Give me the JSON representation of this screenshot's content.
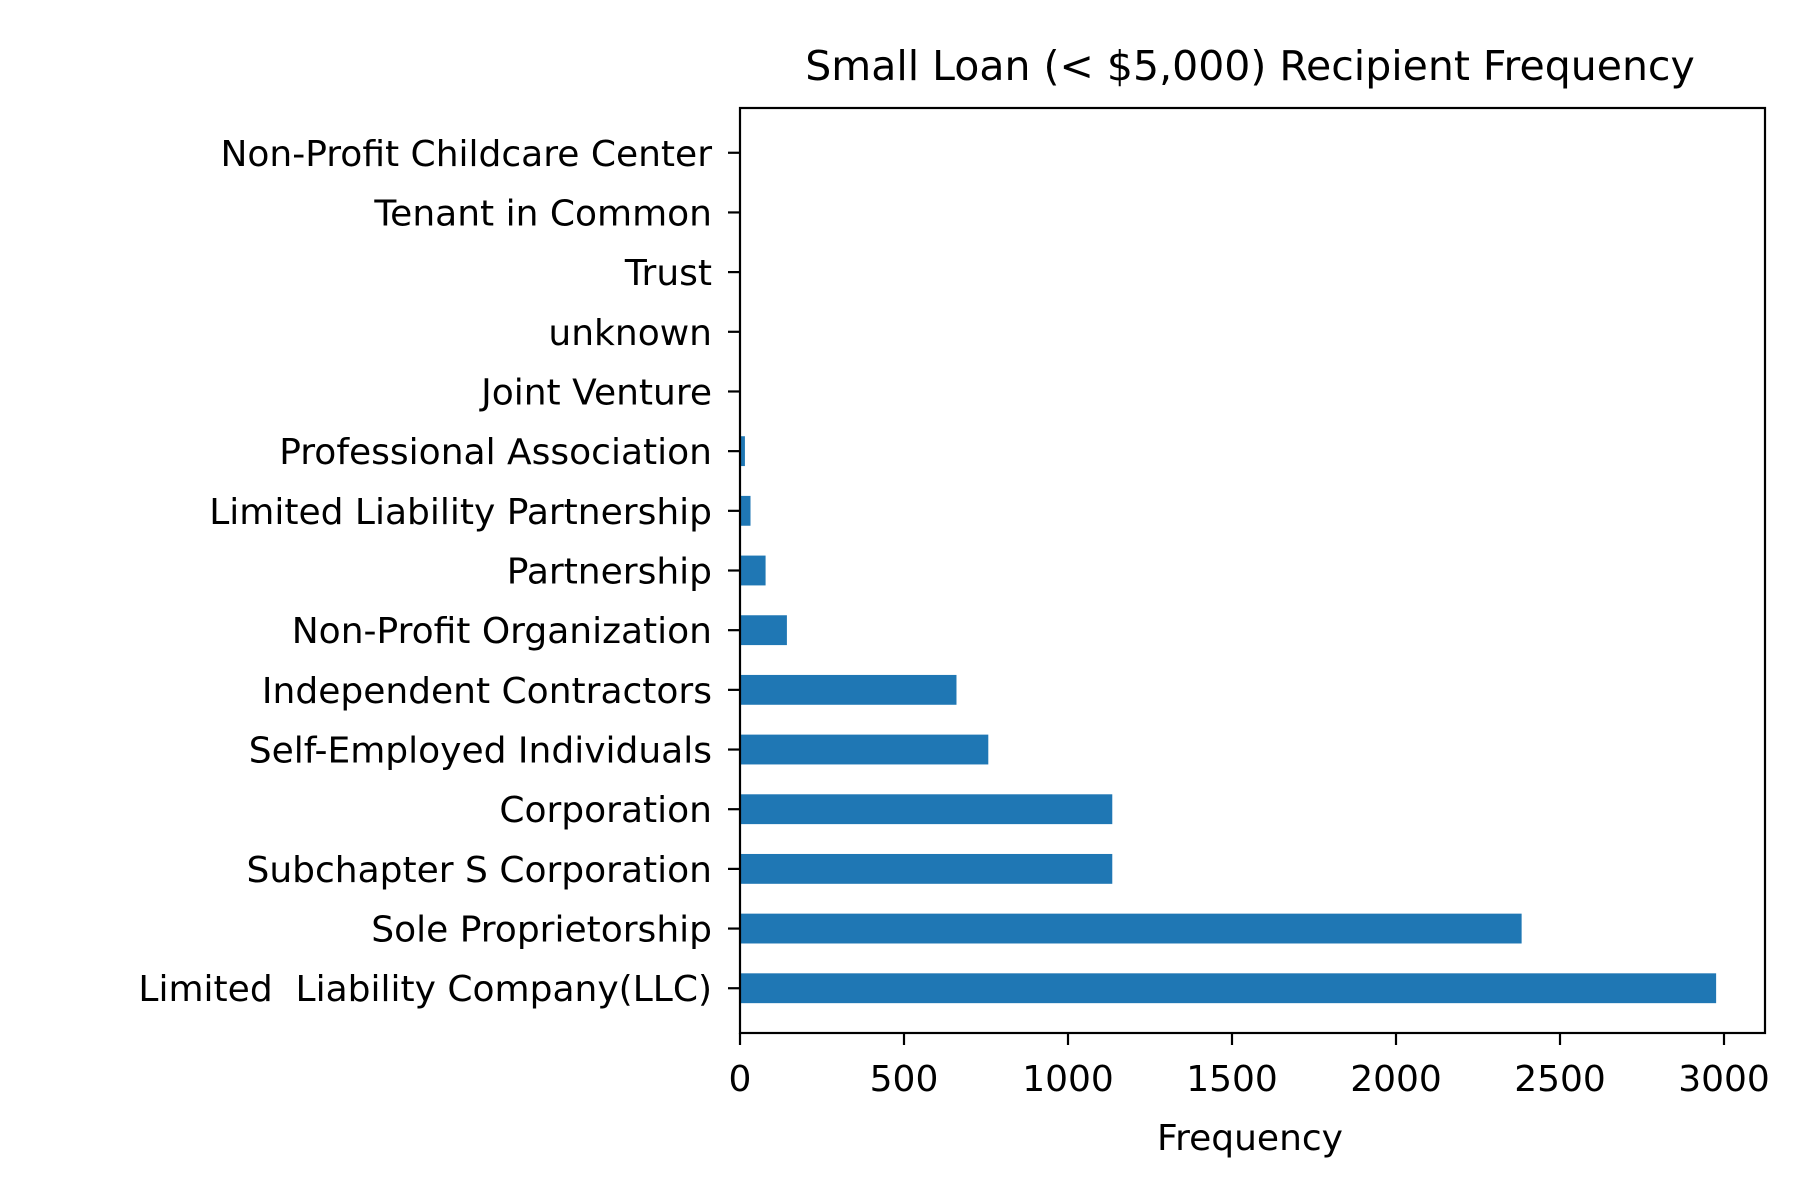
{
  "chart_data": {
    "type": "bar",
    "orientation": "horizontal",
    "title": "Small Loan (< $5,000) Recipient Frequency",
    "xlabel": "Frequency",
    "ylabel": "",
    "xlim": [
      0,
      3125
    ],
    "xticks": [
      0,
      500,
      1000,
      1500,
      2000,
      2500,
      3000
    ],
    "grid": false,
    "categories": [
      "Limited  Liability Company(LLC)",
      "Sole Proprietorship",
      "Subchapter S Corporation",
      "Corporation",
      "Self-Employed Individuals",
      "Independent Contractors",
      "Non-Profit Organization",
      "Partnership",
      "Limited Liability Partnership",
      "Professional Association",
      "Joint Venture",
      "unknown",
      "Trust",
      "Tenant in Common",
      "Non-Profit Childcare Center"
    ],
    "values": [
      2976,
      2383,
      1135,
      1135,
      757,
      660,
      143,
      78,
      32,
      15,
      2,
      1,
      1,
      1,
      1
    ],
    "bar_color": "#1f77b4"
  }
}
